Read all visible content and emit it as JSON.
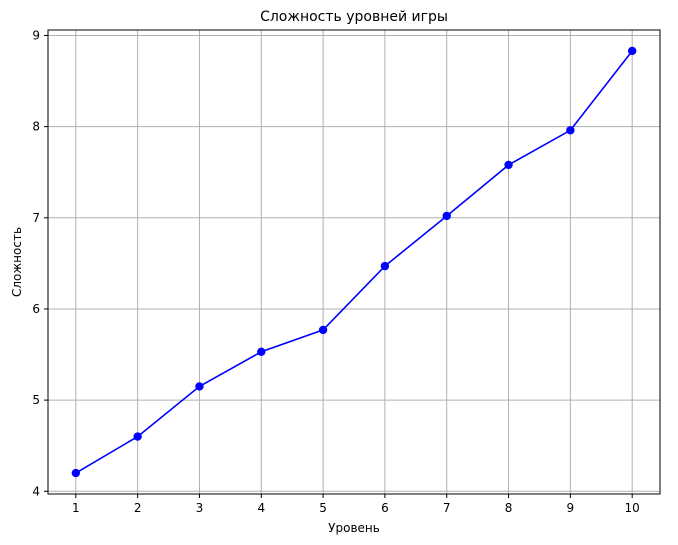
{
  "chart_data": {
    "type": "line",
    "title": "Сложность уровней игры",
    "xlabel": "Уровень",
    "ylabel": "Сложность",
    "x": [
      1,
      2,
      3,
      4,
      5,
      6,
      7,
      8,
      9,
      10
    ],
    "series": [
      {
        "values": [
          4.2,
          4.6,
          5.15,
          5.53,
          5.77,
          6.47,
          7.02,
          7.58,
          7.96,
          8.83
        ],
        "color": "#0000ff",
        "marker": "circle"
      }
    ],
    "xticks": [
      "1",
      "2",
      "3",
      "4",
      "5",
      "6",
      "7",
      "8",
      "9",
      "10"
    ],
    "yticks": [
      "4",
      "5",
      "6",
      "7",
      "8",
      "9"
    ],
    "xlim": [
      0.55,
      10.45
    ],
    "ylim": [
      3.97,
      9.06
    ],
    "grid": true,
    "grid_color": "#b0b0b0"
  }
}
